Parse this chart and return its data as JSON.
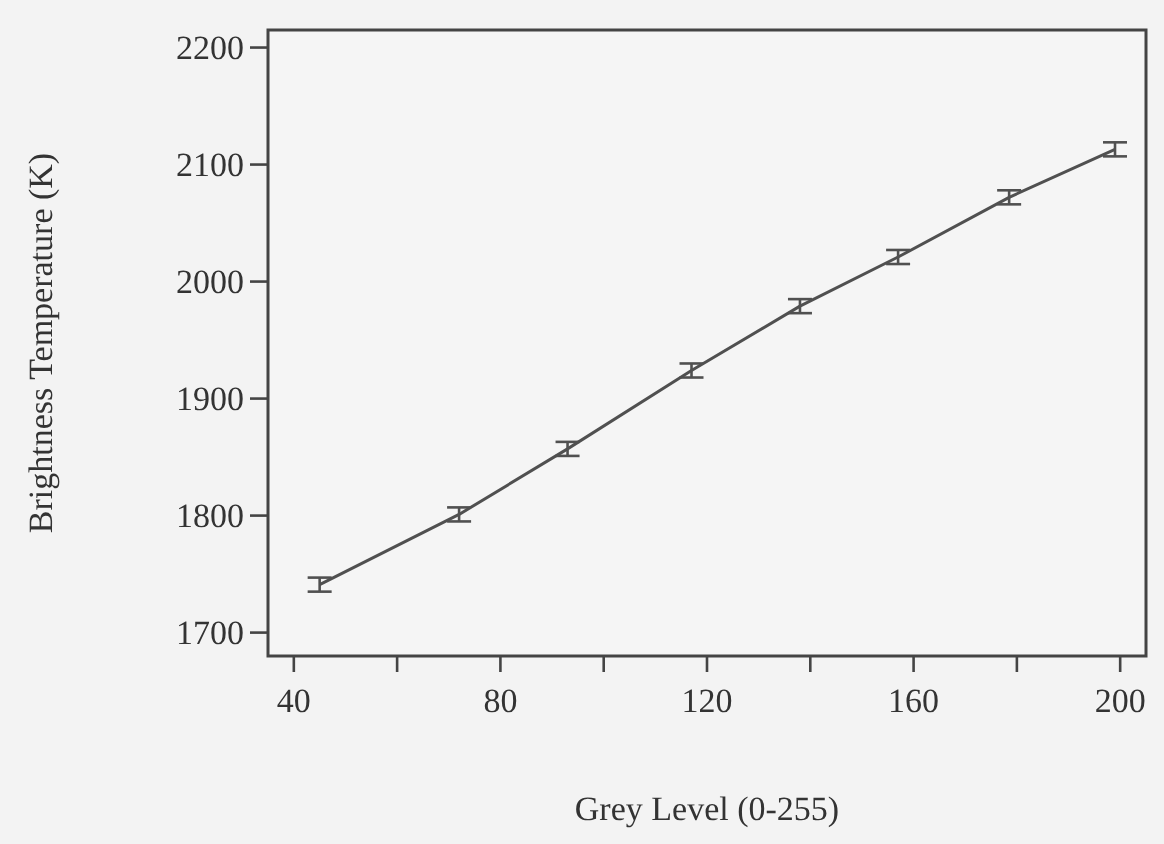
{
  "chart_data": {
    "type": "line",
    "xlabel": "Grey Level (0-255)",
    "ylabel": "Brightness Temperature (K)",
    "x": [
      45,
      72,
      93,
      117,
      138,
      157,
      178.5,
      199
    ],
    "values": [
      1741,
      1801,
      1857,
      1924,
      1979,
      2021,
      2072,
      2113
    ],
    "errors": [
      6,
      6,
      6,
      6,
      6,
      6,
      6,
      6
    ],
    "color": "#505050",
    "marker": "none",
    "line_style": "solid",
    "grid": false,
    "xlim": [
      35,
      205
    ],
    "ylim": [
      1680,
      2215
    ],
    "xticks": [
      40,
      {
        "value": 60,
        "label": null
      },
      80,
      {
        "value": 100,
        "label": null
      },
      120,
      {
        "value": 140,
        "label": null
      },
      160,
      {
        "value": 180,
        "label": null
      },
      200
    ],
    "yticks": [
      1700,
      1800,
      1900,
      2000,
      2100,
      2200
    ]
  }
}
